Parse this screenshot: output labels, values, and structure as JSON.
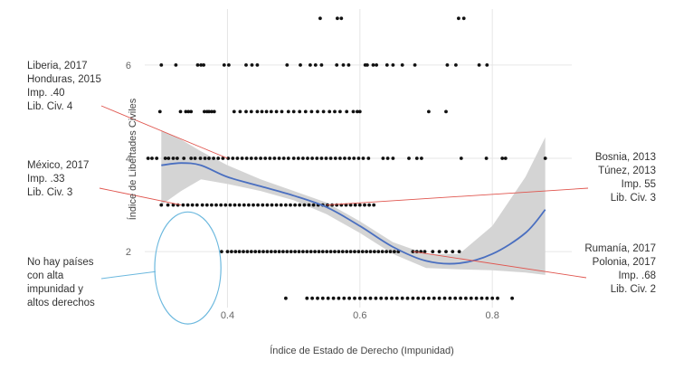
{
  "chart_data": {
    "type": "scatter",
    "xlabel": "Índice de Estado de Derecho (Impunidad)",
    "ylabel": "Índice de Libertades Civiles",
    "xlim": [
      0.275,
      0.92
    ],
    "ylim": [
      0.8,
      7.2
    ],
    "x_ticks": [
      "0.4",
      "0.6",
      "0.8"
    ],
    "y_ticks": [
      "2",
      "4",
      "6"
    ],
    "grid": true,
    "colors": {
      "points": "#111111",
      "smooth_line": "#4a6fc0",
      "confidence_band": "#d2d2d2",
      "annotation_lines": "#e0554e",
      "ellipse": "#6bb8de",
      "grid": "#e6e6e6"
    },
    "points": [
      [
        0.54,
        7.0
      ],
      [
        0.566,
        7.0
      ],
      [
        0.572,
        7.0
      ],
      [
        0.749,
        7.0
      ],
      [
        0.757,
        7.0
      ],
      [
        0.3,
        6.0
      ],
      [
        0.322,
        6.0
      ],
      [
        0.355,
        6.0
      ],
      [
        0.36,
        6.0
      ],
      [
        0.364,
        6.0
      ],
      [
        0.395,
        6.0
      ],
      [
        0.402,
        6.0
      ],
      [
        0.428,
        6.0
      ],
      [
        0.437,
        6.0
      ],
      [
        0.445,
        6.0
      ],
      [
        0.49,
        6.0
      ],
      [
        0.51,
        6.0
      ],
      [
        0.525,
        6.0
      ],
      [
        0.533,
        6.0
      ],
      [
        0.542,
        6.0
      ],
      [
        0.565,
        6.0
      ],
      [
        0.575,
        6.0
      ],
      [
        0.583,
        6.0
      ],
      [
        0.608,
        6.0
      ],
      [
        0.611,
        6.0
      ],
      [
        0.62,
        6.0
      ],
      [
        0.625,
        6.0
      ],
      [
        0.641,
        6.0
      ],
      [
        0.65,
        6.0
      ],
      [
        0.664,
        6.0
      ],
      [
        0.683,
        6.0
      ],
      [
        0.732,
        6.0
      ],
      [
        0.745,
        6.0
      ],
      [
        0.78,
        6.0
      ],
      [
        0.792,
        6.0
      ],
      [
        0.298,
        5.0
      ],
      [
        0.329,
        5.0
      ],
      [
        0.337,
        5.0
      ],
      [
        0.341,
        5.0
      ],
      [
        0.345,
        5.0
      ],
      [
        0.365,
        5.0
      ],
      [
        0.369,
        5.0
      ],
      [
        0.372,
        5.0
      ],
      [
        0.376,
        5.0
      ],
      [
        0.38,
        5.0
      ],
      [
        0.41,
        5.0
      ],
      [
        0.419,
        5.0
      ],
      [
        0.428,
        5.0
      ],
      [
        0.436,
        5.0
      ],
      [
        0.445,
        5.0
      ],
      [
        0.452,
        5.0
      ],
      [
        0.459,
        5.0
      ],
      [
        0.466,
        5.0
      ],
      [
        0.474,
        5.0
      ],
      [
        0.482,
        5.0
      ],
      [
        0.492,
        5.0
      ],
      [
        0.5,
        5.0
      ],
      [
        0.509,
        5.0
      ],
      [
        0.518,
        5.0
      ],
      [
        0.527,
        5.0
      ],
      [
        0.536,
        5.0
      ],
      [
        0.545,
        5.0
      ],
      [
        0.554,
        5.0
      ],
      [
        0.562,
        5.0
      ],
      [
        0.57,
        5.0
      ],
      [
        0.58,
        5.0
      ],
      [
        0.59,
        5.0
      ],
      [
        0.596,
        5.0
      ],
      [
        0.6,
        5.0
      ],
      [
        0.704,
        5.0
      ],
      [
        0.73,
        5.0
      ],
      [
        0.28,
        4.0
      ],
      [
        0.286,
        4.0
      ],
      [
        0.293,
        4.0
      ],
      [
        0.306,
        4.0
      ],
      [
        0.311,
        4.0
      ],
      [
        0.318,
        4.0
      ],
      [
        0.324,
        4.0
      ],
      [
        0.334,
        4.0
      ],
      [
        0.345,
        4.0
      ],
      [
        0.351,
        4.0
      ],
      [
        0.359,
        4.0
      ],
      [
        0.366,
        4.0
      ],
      [
        0.372,
        4.0
      ],
      [
        0.379,
        4.0
      ],
      [
        0.386,
        4.0
      ],
      [
        0.393,
        4.0
      ],
      [
        0.401,
        4.0
      ],
      [
        0.408,
        4.0
      ],
      [
        0.415,
        4.0
      ],
      [
        0.422,
        4.0
      ],
      [
        0.429,
        4.0
      ],
      [
        0.436,
        4.0
      ],
      [
        0.443,
        4.0
      ],
      [
        0.45,
        4.0
      ],
      [
        0.457,
        4.0
      ],
      [
        0.464,
        4.0
      ],
      [
        0.471,
        4.0
      ],
      [
        0.478,
        4.0
      ],
      [
        0.485,
        4.0
      ],
      [
        0.492,
        4.0
      ],
      [
        0.5,
        4.0
      ],
      [
        0.507,
        4.0
      ],
      [
        0.514,
        4.0
      ],
      [
        0.521,
        4.0
      ],
      [
        0.528,
        4.0
      ],
      [
        0.535,
        4.0
      ],
      [
        0.542,
        4.0
      ],
      [
        0.549,
        4.0
      ],
      [
        0.556,
        4.0
      ],
      [
        0.563,
        4.0
      ],
      [
        0.57,
        4.0
      ],
      [
        0.577,
        4.0
      ],
      [
        0.584,
        4.0
      ],
      [
        0.591,
        4.0
      ],
      [
        0.598,
        4.0
      ],
      [
        0.605,
        4.0
      ],
      [
        0.613,
        4.0
      ],
      [
        0.635,
        4.0
      ],
      [
        0.642,
        4.0
      ],
      [
        0.65,
        4.0
      ],
      [
        0.674,
        4.0
      ],
      [
        0.686,
        4.0
      ],
      [
        0.693,
        4.0
      ],
      [
        0.753,
        4.0
      ],
      [
        0.791,
        4.0
      ],
      [
        0.815,
        4.0
      ],
      [
        0.82,
        4.0
      ],
      [
        0.88,
        4.0
      ],
      [
        0.3,
        3.0
      ],
      [
        0.31,
        3.0
      ],
      [
        0.318,
        3.0
      ],
      [
        0.325,
        3.0
      ],
      [
        0.333,
        3.0
      ],
      [
        0.34,
        3.0
      ],
      [
        0.347,
        3.0
      ],
      [
        0.354,
        3.0
      ],
      [
        0.362,
        3.0
      ],
      [
        0.369,
        3.0
      ],
      [
        0.376,
        3.0
      ],
      [
        0.383,
        3.0
      ],
      [
        0.39,
        3.0
      ],
      [
        0.397,
        3.0
      ],
      [
        0.404,
        3.0
      ],
      [
        0.411,
        3.0
      ],
      [
        0.418,
        3.0
      ],
      [
        0.425,
        3.0
      ],
      [
        0.432,
        3.0
      ],
      [
        0.439,
        3.0
      ],
      [
        0.446,
        3.0
      ],
      [
        0.453,
        3.0
      ],
      [
        0.46,
        3.0
      ],
      [
        0.467,
        3.0
      ],
      [
        0.474,
        3.0
      ],
      [
        0.481,
        3.0
      ],
      [
        0.488,
        3.0
      ],
      [
        0.495,
        3.0
      ],
      [
        0.502,
        3.0
      ],
      [
        0.509,
        3.0
      ],
      [
        0.516,
        3.0
      ],
      [
        0.523,
        3.0
      ],
      [
        0.53,
        3.0
      ],
      [
        0.537,
        3.0
      ],
      [
        0.544,
        3.0
      ],
      [
        0.551,
        3.0
      ],
      [
        0.558,
        3.0
      ],
      [
        0.565,
        3.0
      ],
      [
        0.572,
        3.0
      ],
      [
        0.579,
        3.0
      ],
      [
        0.586,
        3.0
      ],
      [
        0.593,
        3.0
      ],
      [
        0.6,
        3.0
      ],
      [
        0.607,
        3.0
      ],
      [
        0.614,
        3.0
      ],
      [
        0.621,
        3.0
      ],
      [
        0.391,
        2.0
      ],
      [
        0.4,
        2.0
      ],
      [
        0.406,
        2.0
      ],
      [
        0.412,
        2.0
      ],
      [
        0.418,
        2.0
      ],
      [
        0.424,
        2.0
      ],
      [
        0.43,
        2.0
      ],
      [
        0.436,
        2.0
      ],
      [
        0.442,
        2.0
      ],
      [
        0.448,
        2.0
      ],
      [
        0.454,
        2.0
      ],
      [
        0.46,
        2.0
      ],
      [
        0.466,
        2.0
      ],
      [
        0.472,
        2.0
      ],
      [
        0.478,
        2.0
      ],
      [
        0.484,
        2.0
      ],
      [
        0.49,
        2.0
      ],
      [
        0.496,
        2.0
      ],
      [
        0.502,
        2.0
      ],
      [
        0.508,
        2.0
      ],
      [
        0.514,
        2.0
      ],
      [
        0.52,
        2.0
      ],
      [
        0.526,
        2.0
      ],
      [
        0.532,
        2.0
      ],
      [
        0.538,
        2.0
      ],
      [
        0.544,
        2.0
      ],
      [
        0.55,
        2.0
      ],
      [
        0.556,
        2.0
      ],
      [
        0.562,
        2.0
      ],
      [
        0.568,
        2.0
      ],
      [
        0.574,
        2.0
      ],
      [
        0.58,
        2.0
      ],
      [
        0.586,
        2.0
      ],
      [
        0.592,
        2.0
      ],
      [
        0.598,
        2.0
      ],
      [
        0.604,
        2.0
      ],
      [
        0.61,
        2.0
      ],
      [
        0.616,
        2.0
      ],
      [
        0.622,
        2.0
      ],
      [
        0.628,
        2.0
      ],
      [
        0.634,
        2.0
      ],
      [
        0.64,
        2.0
      ],
      [
        0.646,
        2.0
      ],
      [
        0.652,
        2.0
      ],
      [
        0.658,
        2.0
      ],
      [
        0.68,
        2.0
      ],
      [
        0.686,
        2.0
      ],
      [
        0.692,
        2.0
      ],
      [
        0.698,
        2.0
      ],
      [
        0.71,
        2.0
      ],
      [
        0.72,
        2.0
      ],
      [
        0.73,
        2.0
      ],
      [
        0.74,
        2.0
      ],
      [
        0.75,
        2.0
      ],
      [
        0.488,
        1.0
      ],
      [
        0.52,
        1.0
      ],
      [
        0.528,
        1.0
      ],
      [
        0.536,
        1.0
      ],
      [
        0.544,
        1.0
      ],
      [
        0.552,
        1.0
      ],
      [
        0.56,
        1.0
      ],
      [
        0.568,
        1.0
      ],
      [
        0.576,
        1.0
      ],
      [
        0.584,
        1.0
      ],
      [
        0.592,
        1.0
      ],
      [
        0.6,
        1.0
      ],
      [
        0.608,
        1.0
      ],
      [
        0.616,
        1.0
      ],
      [
        0.624,
        1.0
      ],
      [
        0.632,
        1.0
      ],
      [
        0.64,
        1.0
      ],
      [
        0.648,
        1.0
      ],
      [
        0.656,
        1.0
      ],
      [
        0.664,
        1.0
      ],
      [
        0.672,
        1.0
      ],
      [
        0.68,
        1.0
      ],
      [
        0.688,
        1.0
      ],
      [
        0.696,
        1.0
      ],
      [
        0.704,
        1.0
      ],
      [
        0.712,
        1.0
      ],
      [
        0.72,
        1.0
      ],
      [
        0.728,
        1.0
      ],
      [
        0.736,
        1.0
      ],
      [
        0.744,
        1.0
      ],
      [
        0.752,
        1.0
      ],
      [
        0.76,
        1.0
      ],
      [
        0.768,
        1.0
      ],
      [
        0.776,
        1.0
      ],
      [
        0.784,
        1.0
      ],
      [
        0.792,
        1.0
      ],
      [
        0.8,
        1.0
      ],
      [
        0.808,
        1.0
      ],
      [
        0.83,
        1.0
      ]
    ],
    "smooth": {
      "x": [
        0.3,
        0.33,
        0.36,
        0.4,
        0.45,
        0.5,
        0.55,
        0.6,
        0.65,
        0.7,
        0.75,
        0.8,
        0.85,
        0.88
      ],
      "y": [
        3.85,
        3.9,
        3.85,
        3.6,
        3.4,
        3.2,
        2.95,
        2.55,
        2.1,
        1.8,
        1.75,
        1.95,
        2.4,
        2.9
      ],
      "lower": [
        3.0,
        3.3,
        3.55,
        3.45,
        3.3,
        3.1,
        2.8,
        2.4,
        1.95,
        1.65,
        1.62,
        1.6,
        1.55,
        1.5
      ],
      "upper": [
        4.6,
        4.4,
        4.15,
        3.85,
        3.55,
        3.3,
        3.05,
        2.65,
        2.2,
        1.95,
        1.95,
        2.55,
        3.6,
        4.45
      ]
    },
    "annotations": [
      {
        "id": "liberia-honduras",
        "lines": [
          "Liberia, 2017",
          "Honduras, 2015",
          "Imp. .40",
          "Lib. Civ. 4"
        ],
        "target": [
          0.4,
          4.0
        ],
        "align": "left"
      },
      {
        "id": "mexico",
        "lines": [
          "México, 2017",
          "Imp. .33",
          "Lib. Civ. 3"
        ],
        "target": [
          0.33,
          3.0
        ],
        "align": "left"
      },
      {
        "id": "bosnia-tunez",
        "lines": [
          "Bosnia, 2013",
          "Túnez, 2013",
          "Imp. 55",
          "Lib. Civ. 3"
        ],
        "target": [
          0.55,
          3.0
        ],
        "align": "right"
      },
      {
        "id": "rumania-polonia",
        "lines": [
          "Rumanía, 2017",
          "Polonia, 2017",
          "Imp. .68",
          "Lib. Civ. 2"
        ],
        "target": [
          0.68,
          2.0
        ],
        "align": "right"
      },
      {
        "id": "no-hay-paises",
        "lines": [
          "No hay países",
          "con alta",
          "impunidad y",
          "altos derechos"
        ],
        "target_ellipse": {
          "cx": 0.34,
          "cy": 1.65,
          "rx": 0.05,
          "ry": 1.2
        },
        "align": "left"
      }
    ]
  }
}
